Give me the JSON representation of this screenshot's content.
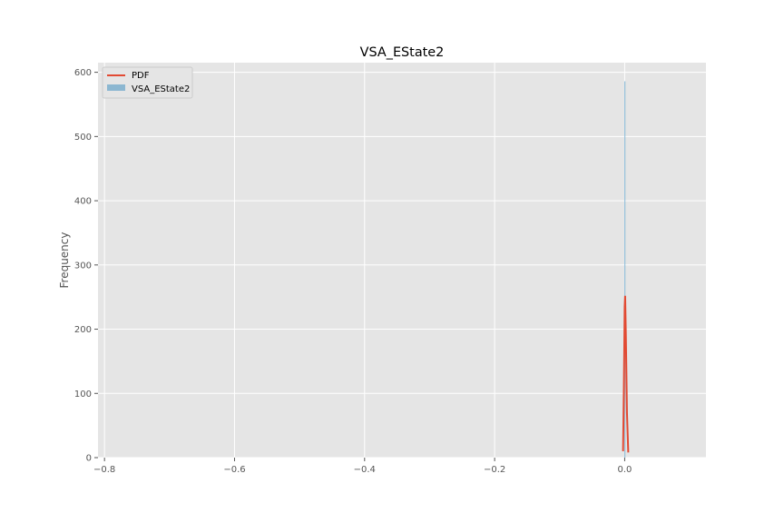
{
  "chart_data": {
    "type": "histogram",
    "title": "VSA_EState2",
    "xlabel": "",
    "ylabel": "Frequency",
    "xlim": [
      -0.81,
      0.125
    ],
    "ylim": [
      0,
      615
    ],
    "xticks": [
      -0.8,
      -0.6,
      -0.4,
      -0.2,
      0.0
    ],
    "xtick_labels": [
      "−0.8",
      "−0.6",
      "−0.4",
      "−0.2",
      "0.0"
    ],
    "yticks": [
      0,
      100,
      200,
      300,
      400,
      500,
      600
    ],
    "ytick_labels": [
      "0",
      "100",
      "200",
      "300",
      "400",
      "500",
      "600"
    ],
    "grid": true,
    "legend_position": "top-left",
    "style": "ggplot",
    "series": [
      {
        "name": "PDF",
        "kind": "line",
        "color": "#E24A33",
        "x": [
          -0.0025,
          -0.0012,
          0.0,
          0.0007,
          0.0018,
          0.0035,
          0.0055
        ],
        "y": [
          10,
          110,
          235,
          252,
          190,
          70,
          8
        ]
      },
      {
        "name": "VSA_EState2",
        "kind": "bars",
        "color": "#348ABD",
        "opacity": 0.5,
        "bins": [
          {
            "x0": -0.0006,
            "x1": 0.0006,
            "value": 586
          }
        ]
      }
    ]
  }
}
